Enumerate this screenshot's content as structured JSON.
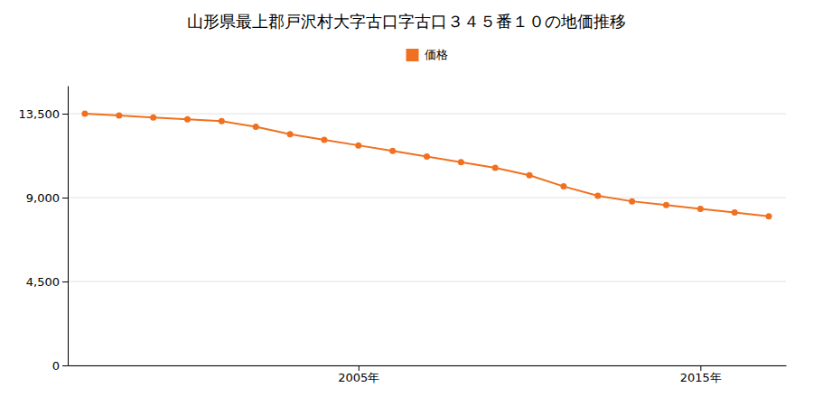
{
  "chart_data": {
    "type": "line",
    "title": "山形県最上郡戸沢村大字古口字古口３４５番１０の地価推移",
    "x": [
      1997,
      1998,
      1999,
      2000,
      2001,
      2002,
      2003,
      2004,
      2005,
      2006,
      2007,
      2008,
      2009,
      2010,
      2011,
      2012,
      2013,
      2014,
      2015,
      2016,
      2017
    ],
    "series": [
      {
        "name": "価格",
        "color": "#f07020",
        "marker": "circle",
        "values": [
          13500,
          13400,
          13300,
          13200,
          13100,
          12800,
          12400,
          12100,
          11800,
          11500,
          11200,
          10900,
          10600,
          10200,
          9600,
          9100,
          8800,
          8600,
          8400,
          8200,
          8000
        ]
      }
    ],
    "xlim": [
      1996.5,
      2017.5
    ],
    "xticks": [
      {
        "value": 2005,
        "label": "2005年"
      },
      {
        "value": 2015,
        "label": "2015年"
      }
    ],
    "ylim": [
      0,
      15000
    ],
    "yticks": [
      0,
      {
        "value": 4500,
        "label": "4,500"
      },
      {
        "value": 9000,
        "label": "9,000"
      },
      {
        "value": 13500,
        "label": "13,500"
      }
    ],
    "grid": true,
    "legend": "upper center"
  }
}
